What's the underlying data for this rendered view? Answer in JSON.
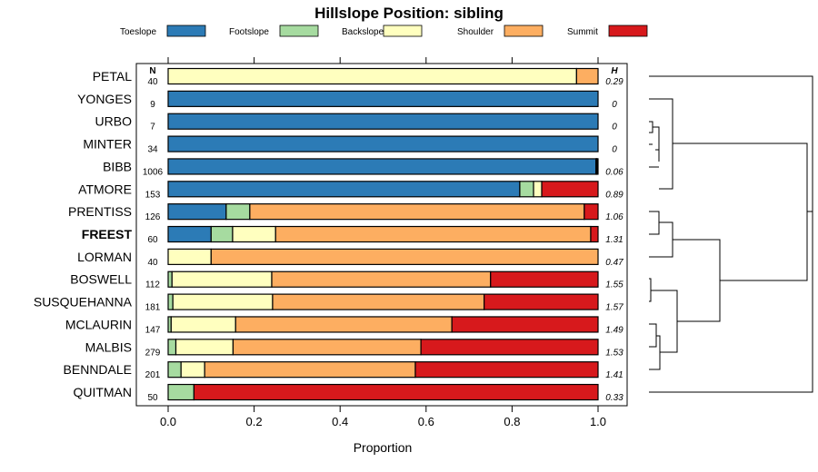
{
  "chart_data": {
    "type": "stacked-bar",
    "title": "Hillslope Position: sibling",
    "xlabel": "Proportion",
    "xlim": [
      0,
      1
    ],
    "xticks": [
      "0.0",
      "0.2",
      "0.4",
      "0.6",
      "0.8",
      "1.0"
    ],
    "n_header": "N",
    "h_header": "H",
    "highlight": "FREEST",
    "categories": [
      "Toeslope",
      "Footslope",
      "Backslope",
      "Shoulder",
      "Summit"
    ],
    "colors": {
      "Toeslope": "#2c7bb6",
      "Footslope": "#a6dba0",
      "Backslope": "#ffffbf",
      "Shoulder": "#fdae61",
      "Summit": "#d7191c"
    },
    "rows": [
      {
        "name": "PETAL",
        "n": "40",
        "h": "0.29",
        "values": [
          0.0,
          0.0,
          0.95,
          0.05,
          0.0
        ]
      },
      {
        "name": "YONGES",
        "n": "9",
        "h": "0",
        "values": [
          1.0,
          0.0,
          0.0,
          0.0,
          0.0
        ]
      },
      {
        "name": "URBO",
        "n": "7",
        "h": "0",
        "values": [
          1.0,
          0.0,
          0.0,
          0.0,
          0.0
        ]
      },
      {
        "name": "MINTER",
        "n": "34",
        "h": "0",
        "values": [
          1.0,
          0.0,
          0.0,
          0.0,
          0.0
        ]
      },
      {
        "name": "BIBB",
        "n": "1006",
        "h": "0.06",
        "values": [
          0.995,
          0.001,
          0.001,
          0.001,
          0.002
        ]
      },
      {
        "name": "ATMORE",
        "n": "153",
        "h": "0.89",
        "values": [
          0.818,
          0.032,
          0.019,
          0.0,
          0.131
        ]
      },
      {
        "name": "PRENTISS",
        "n": "126",
        "h": "1.06",
        "values": [
          0.135,
          0.055,
          0.0,
          0.778,
          0.032
        ]
      },
      {
        "name": "FREEST",
        "n": "60",
        "h": "1.31",
        "values": [
          0.1,
          0.05,
          0.1,
          0.733,
          0.017
        ]
      },
      {
        "name": "LORMAN",
        "n": "40",
        "h": "0.47",
        "values": [
          0.0,
          0.0,
          0.1,
          0.9,
          0.0
        ]
      },
      {
        "name": "BOSWELL",
        "n": "112",
        "h": "1.55",
        "values": [
          0.0,
          0.009,
          0.232,
          0.509,
          0.25
        ]
      },
      {
        "name": "SUSQUEHANNA",
        "n": "181",
        "h": "1.57",
        "values": [
          0.0,
          0.011,
          0.232,
          0.492,
          0.265
        ]
      },
      {
        "name": "MCLAURIN",
        "n": "147",
        "h": "1.49",
        "values": [
          0.0,
          0.007,
          0.15,
          0.503,
          0.34
        ]
      },
      {
        "name": "MALBIS",
        "n": "279",
        "h": "1.53",
        "values": [
          0.0,
          0.018,
          0.133,
          0.437,
          0.412
        ]
      },
      {
        "name": "BENNDALE",
        "n": "201",
        "h": "1.41",
        "values": [
          0.0,
          0.03,
          0.055,
          0.49,
          0.425
        ]
      },
      {
        "name": "QUITMAN",
        "n": "50",
        "h": "0.33",
        "values": [
          0.0,
          0.06,
          0.0,
          0.0,
          0.94
        ]
      }
    ]
  }
}
